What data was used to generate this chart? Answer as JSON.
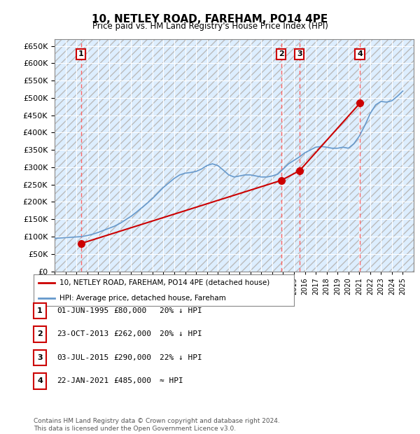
{
  "title": "10, NETLEY ROAD, FAREHAM, PO14 4PE",
  "subtitle": "Price paid vs. HM Land Registry's House Price Index (HPI)",
  "ytick_values": [
    0,
    50000,
    100000,
    150000,
    200000,
    250000,
    300000,
    350000,
    400000,
    450000,
    500000,
    550000,
    600000,
    650000
  ],
  "xlim": [
    1993,
    2026
  ],
  "ylim": [
    0,
    670000
  ],
  "background_color": "#ffffff",
  "plot_bg_color": "#ddeeff",
  "sale_points": [
    {
      "year": 1995.42,
      "price": 80000,
      "label": "1"
    },
    {
      "year": 2013.81,
      "price": 262000,
      "label": "2"
    },
    {
      "year": 2015.5,
      "price": 290000,
      "label": "3"
    },
    {
      "year": 2021.06,
      "price": 485000,
      "label": "4"
    }
  ],
  "vline_color": "#ff6666",
  "sale_marker_color": "#cc0000",
  "sale_line_color": "#cc0000",
  "hpi_line_color": "#6699cc",
  "legend_entries": [
    "10, NETLEY ROAD, FAREHAM, PO14 4PE (detached house)",
    "HPI: Average price, detached house, Fareham"
  ],
  "table_rows": [
    [
      "1",
      "01-JUN-1995",
      "£80,000",
      "20% ↓ HPI"
    ],
    [
      "2",
      "23-OCT-2013",
      "£262,000",
      "20% ↓ HPI"
    ],
    [
      "3",
      "03-JUL-2015",
      "£290,000",
      "22% ↓ HPI"
    ],
    [
      "4",
      "22-JAN-2021",
      "£485,000",
      "≈ HPI"
    ]
  ],
  "footnote": "Contains HM Land Registry data © Crown copyright and database right 2024.\nThis data is licensed under the Open Government Licence v3.0.",
  "hpi_years": [
    1993,
    1993.5,
    1994,
    1994.5,
    1995,
    1995.5,
    1996,
    1996.5,
    1997,
    1997.5,
    1998,
    1998.5,
    1999,
    1999.5,
    2000,
    2000.5,
    2001,
    2001.5,
    2002,
    2002.5,
    2003,
    2003.5,
    2004,
    2004.5,
    2005,
    2005.5,
    2006,
    2006.5,
    2007,
    2007.5,
    2008,
    2008.5,
    2009,
    2009.5,
    2010,
    2010.5,
    2011,
    2011.5,
    2012,
    2012.5,
    2013,
    2013.5,
    2014,
    2014.5,
    2015,
    2015.5,
    2016,
    2016.5,
    2017,
    2017.5,
    2018,
    2018.5,
    2019,
    2019.5,
    2020,
    2020.5,
    2021,
    2021.5,
    2022,
    2022.5,
    2023,
    2023.5,
    2024,
    2024.5,
    2025
  ],
  "hpi_values": [
    95000,
    96000,
    97000,
    98000,
    99000,
    100000,
    103000,
    107000,
    112000,
    118000,
    124000,
    130000,
    138000,
    148000,
    158000,
    170000,
    183000,
    196000,
    210000,
    226000,
    242000,
    255000,
    268000,
    278000,
    283000,
    285000,
    288000,
    295000,
    305000,
    310000,
    305000,
    292000,
    278000,
    272000,
    275000,
    278000,
    278000,
    275000,
    272000,
    272000,
    275000,
    280000,
    295000,
    310000,
    320000,
    330000,
    342000,
    350000,
    358000,
    360000,
    358000,
    355000,
    355000,
    358000,
    355000,
    368000,
    390000,
    420000,
    455000,
    480000,
    490000,
    488000,
    492000,
    505000,
    520000
  ]
}
